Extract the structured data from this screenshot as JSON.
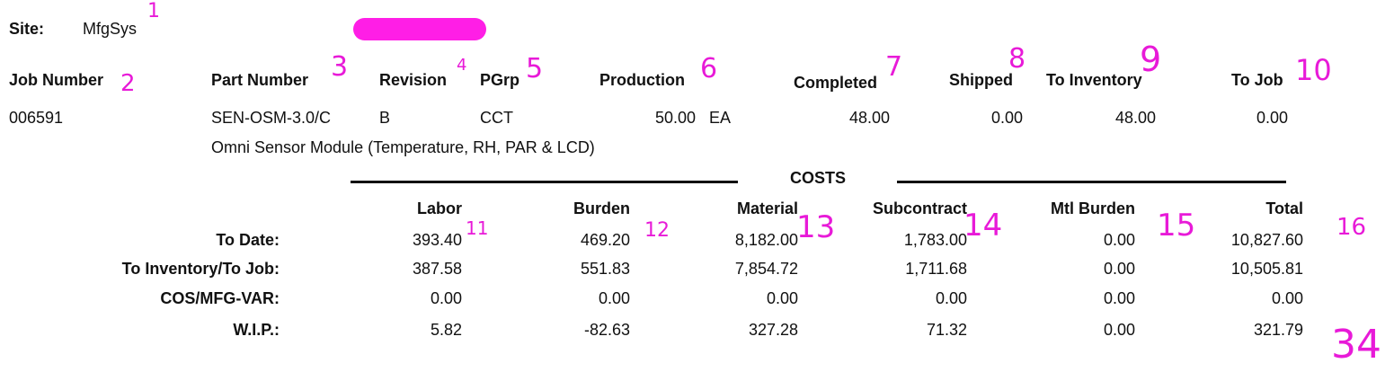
{
  "site": {
    "label": "Site:",
    "value": "MfgSys"
  },
  "job_header": {
    "job_number": "Job Number",
    "part_number": "Part Number",
    "revision": "Revision",
    "pgrp": "PGrp",
    "production": "Production",
    "completed": "Completed",
    "shipped": "Shipped",
    "to_inventory": "To Inventory",
    "to_job": "To Job"
  },
  "job": {
    "job_number": "006591",
    "part_number": "SEN-OSM-3.0/C",
    "revision": "B",
    "pgrp": "CCT",
    "production": "50.00",
    "uom": "EA",
    "completed": "48.00",
    "shipped": "0.00",
    "to_inventory": "48.00",
    "to_job": "0.00",
    "description": "Omni Sensor Module (Temperature, RH, PAR & LCD)"
  },
  "costs": {
    "title": "COSTS",
    "columns": [
      "Labor",
      "Burden",
      "Material",
      "Subcontract",
      "Mtl Burden",
      "Total"
    ],
    "rows": [
      {
        "label": "To Date:",
        "values": [
          "393.40",
          "469.20",
          "8,182.00",
          "1,783.00",
          "0.00",
          "10,827.60"
        ]
      },
      {
        "label": "To Inventory/To Job:",
        "values": [
          "387.58",
          "551.83",
          "7,854.72",
          "1,711.68",
          "0.00",
          "10,505.81"
        ]
      },
      {
        "label": "COS/MFG-VAR:",
        "values": [
          "0.00",
          "0.00",
          "0.00",
          "0.00",
          "0.00",
          "0.00"
        ]
      },
      {
        "label": "W.I.P.:",
        "values": [
          "5.82",
          "-82.63",
          "327.28",
          "71.32",
          "0.00",
          "321.79"
        ]
      }
    ]
  },
  "annotations": {
    "n1": "1",
    "n2": "2",
    "n3": "3",
    "n4": "4",
    "n5": "5",
    "n6": "6",
    "n7": "7",
    "n8": "8",
    "n9": "9",
    "n10": "10",
    "n11": "11",
    "n12": "12",
    "n13": "13",
    "n14": "14",
    "n15": "15",
    "n16": "16",
    "total": "34"
  },
  "colors": {
    "annotation": "#e81ad8",
    "redaction": "#ff1ee6"
  }
}
